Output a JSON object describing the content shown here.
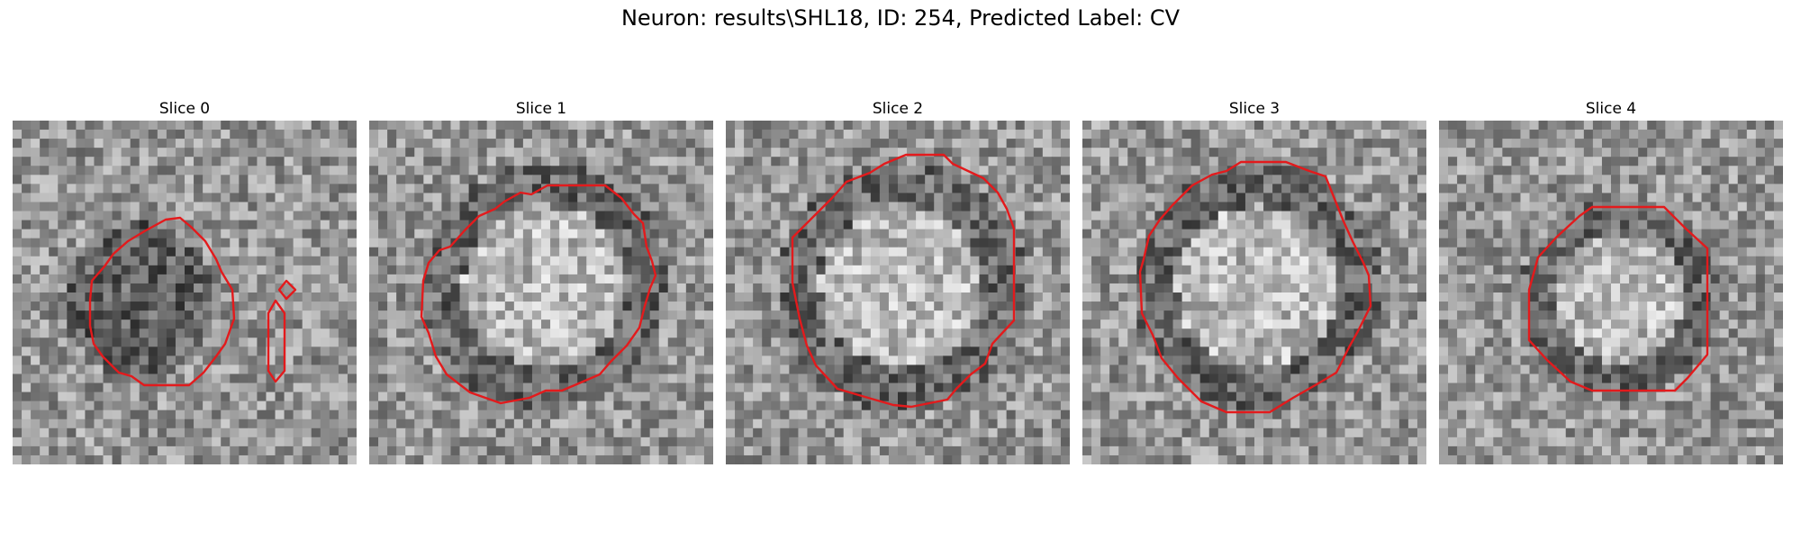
{
  "figure": {
    "title": "Neuron: results\\SHL18, ID: 254, Predicted Label: CV",
    "contour_color": "#e31a1c"
  },
  "panels": [
    {
      "title": "Slice 0",
      "image": "grayscale-microscopy-slice-with-red-contour",
      "ring": "dark",
      "seed": 11
    },
    {
      "title": "Slice 1",
      "image": "grayscale-microscopy-slice-with-red-contour",
      "ring": "light-center",
      "seed": 23
    },
    {
      "title": "Slice 2",
      "image": "grayscale-microscopy-slice-with-red-contour",
      "ring": "light-center",
      "seed": 37
    },
    {
      "title": "Slice 3",
      "image": "grayscale-microscopy-slice-with-red-contour",
      "ring": "light-center",
      "seed": 41
    },
    {
      "title": "Slice 4",
      "image": "grayscale-microscopy-slice-with-red-contour",
      "ring": "light-center",
      "seed": 53
    }
  ]
}
